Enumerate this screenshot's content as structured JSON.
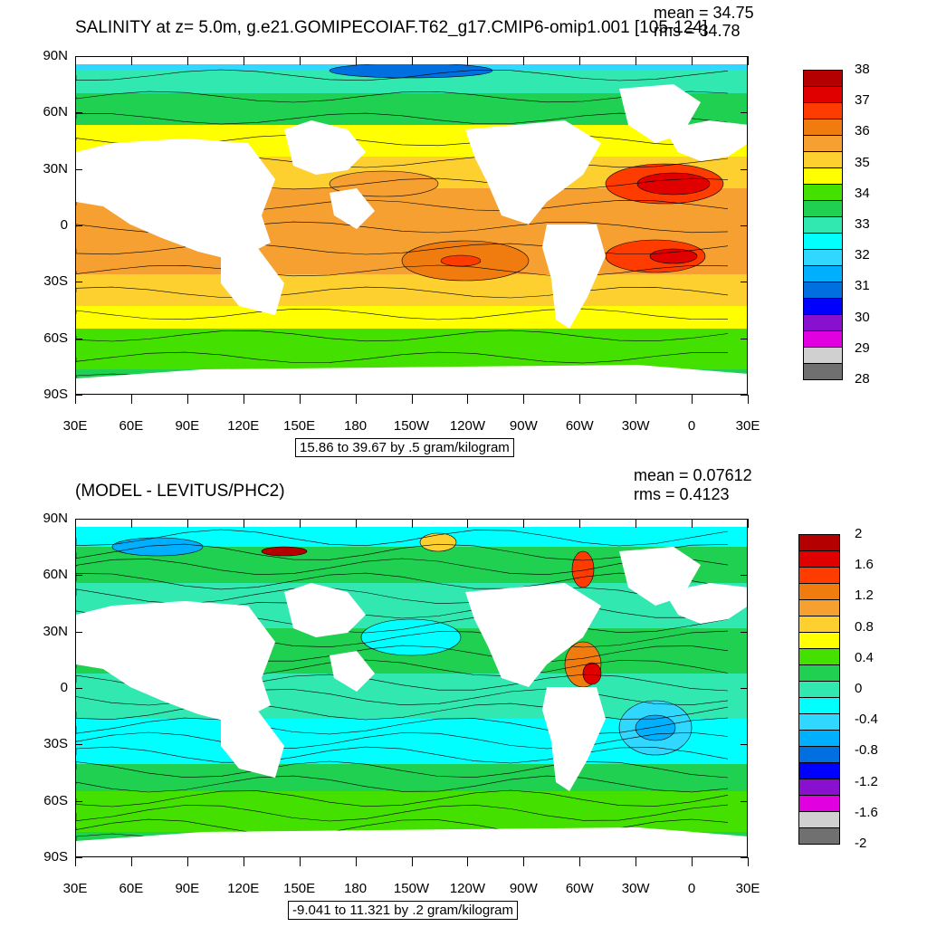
{
  "chart_data": [
    {
      "type": "heatmap",
      "title": "SALINITY at z=   5.0m, g.e21.GOMIPECOIAF.T62_g17.CMIP6-omip1.001 [105-124]",
      "stats": [
        "mean = 34.75",
        "rms = 34.78"
      ],
      "range_label": "15.86 to 39.67 by .5 gram/kilogram",
      "y_ticks": [
        "90N",
        "60N",
        "30N",
        "0",
        "30S",
        "60S",
        "90S"
      ],
      "x_ticks": [
        "30E",
        "60E",
        "90E",
        "120E",
        "150E",
        "180",
        "150W",
        "120W",
        "90W",
        "60W",
        "30W",
        "0",
        "30E"
      ],
      "colorbar_labels": [
        "38",
        "37",
        "36",
        "35",
        "34",
        "33",
        "32",
        "31",
        "30",
        "29",
        "28"
      ],
      "colorbar_colors": [
        "#b40000",
        "#e00000",
        "#ff3c00",
        "#f07c10",
        "#f5a030",
        "#fdd030",
        "#ffff00",
        "#44e000",
        "#20d050",
        "#30e8b0",
        "#00ffff",
        "#30d8ff",
        "#00b0ff",
        "#0070e0",
        "#0000ff",
        "#8a10d0",
        "#e000e0",
        "#d0d0d0",
        "#707070"
      ]
    },
    {
      "type": "heatmap",
      "title": "(MODEL - LEVITUS/PHC2)",
      "stats": [
        "mean = 0.07612",
        "rms = 0.4123"
      ],
      "range_label": "-9.041 to 11.321 by .2 gram/kilogram",
      "y_ticks": [
        "90N",
        "60N",
        "30N",
        "0",
        "30S",
        "60S",
        "90S"
      ],
      "x_ticks": [
        "30E",
        "60E",
        "90E",
        "120E",
        "150E",
        "180",
        "150W",
        "120W",
        "90W",
        "60W",
        "30W",
        "0",
        "30E"
      ],
      "colorbar_labels": [
        "2",
        "1.6",
        "1.2",
        "0.8",
        "0.4",
        "0",
        "-0.4",
        "-0.8",
        "-1.2",
        "-1.6",
        "-2"
      ],
      "colorbar_colors": [
        "#b40000",
        "#e00000",
        "#ff3c00",
        "#f07c10",
        "#f5a030",
        "#fdd030",
        "#ffff00",
        "#44e000",
        "#20d050",
        "#30e8b0",
        "#00ffff",
        "#30d8ff",
        "#00b0ff",
        "#0070e0",
        "#0000ff",
        "#8a10d0",
        "#e000e0",
        "#d0d0d0",
        "#707070"
      ]
    }
  ]
}
